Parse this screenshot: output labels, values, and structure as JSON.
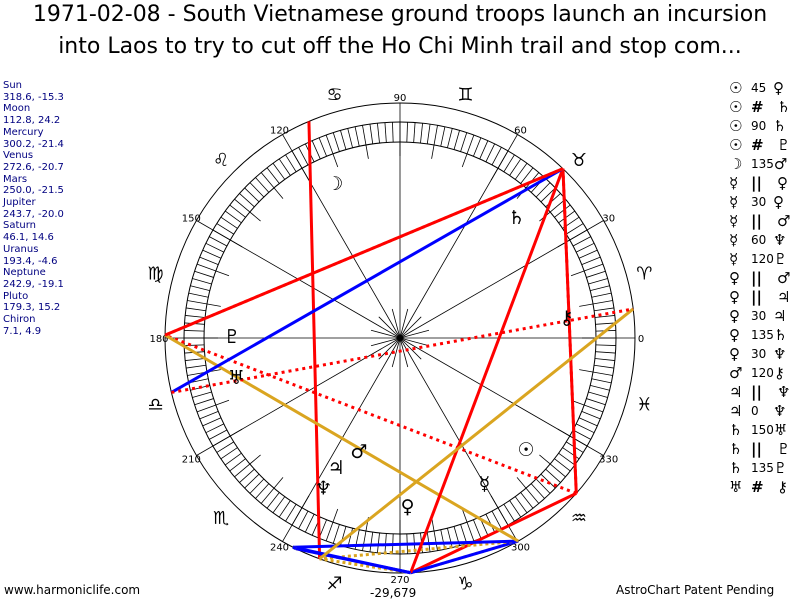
{
  "title": {
    "line1": "1971-02-08 - South Vietnamese ground troops launch an incursion",
    "line2": "into Laos to try to cut off the Ho Chi Minh trail and stop com..."
  },
  "planets": [
    {
      "name": "Sun",
      "coords": "318.6, -15.3",
      "lon": 318.6,
      "glyph": "☉"
    },
    {
      "name": "Moon",
      "coords": "112.8, 24.2",
      "lon": 112.8,
      "glyph": "☽"
    },
    {
      "name": "Mercury",
      "coords": "300.2, -21.4",
      "lon": 300.2,
      "glyph": "☿"
    },
    {
      "name": "Venus",
      "coords": "272.6, -20.7",
      "lon": 272.6,
      "glyph": "♀"
    },
    {
      "name": "Mars",
      "coords": "250.0, -21.5",
      "lon": 250.0,
      "glyph": "♂"
    },
    {
      "name": "Jupiter",
      "coords": "243.7, -20.0",
      "lon": 243.7,
      "glyph": "♃"
    },
    {
      "name": "Saturn",
      "coords": "46.1, 14.6",
      "lon": 46.1,
      "glyph": "♄"
    },
    {
      "name": "Uranus",
      "coords": "193.4, -4.6",
      "lon": 193.4,
      "glyph": "♅"
    },
    {
      "name": "Neptune",
      "coords": "242.9, -19.1",
      "lon": 242.9,
      "glyph": "♆"
    },
    {
      "name": "Pluto",
      "coords": "179.3, 15.2",
      "lon": 179.3,
      "glyph": "♇"
    },
    {
      "name": "Chiron",
      "coords": "7.1, 4.9",
      "lon": 7.1,
      "glyph": "⚷"
    }
  ],
  "aspects": [
    {
      "p1": "Sun",
      "g1": "☉",
      "aspect": "45",
      "p2": "Venus",
      "g2": "♀"
    },
    {
      "p1": "Sun",
      "g1": "☉",
      "aspect": "#",
      "p2": "Saturn",
      "g2": "♄"
    },
    {
      "p1": "Sun",
      "g1": "☉",
      "aspect": "90",
      "p2": "Saturn",
      "g2": "♄"
    },
    {
      "p1": "Sun",
      "g1": "☉",
      "aspect": "#",
      "p2": "Pluto",
      "g2": "♇"
    },
    {
      "p1": "Moon",
      "g1": "☽",
      "aspect": "135",
      "p2": "Mars",
      "g2": "♂"
    },
    {
      "p1": "Mercury",
      "g1": "☿",
      "aspect": "||",
      "p2": "Venus",
      "g2": "♀"
    },
    {
      "p1": "Mercury",
      "g1": "☿",
      "aspect": "30",
      "p2": "Venus",
      "g2": "♀"
    },
    {
      "p1": "Mercury",
      "g1": "☿",
      "aspect": "||",
      "p2": "Mars",
      "g2": "♂"
    },
    {
      "p1": "Mercury",
      "g1": "☿",
      "aspect": "60",
      "p2": "Neptune",
      "g2": "♆"
    },
    {
      "p1": "Mercury",
      "g1": "☿",
      "aspect": "120",
      "p2": "Pluto",
      "g2": "♇"
    },
    {
      "p1": "Venus",
      "g1": "♀",
      "aspect": "||",
      "p2": "Mars",
      "g2": "♂"
    },
    {
      "p1": "Venus",
      "g1": "♀",
      "aspect": "||",
      "p2": "Jupiter",
      "g2": "♃"
    },
    {
      "p1": "Venus",
      "g1": "♀",
      "aspect": "30",
      "p2": "Jupiter",
      "g2": "♃"
    },
    {
      "p1": "Venus",
      "g1": "♀",
      "aspect": "135",
      "p2": "Saturn",
      "g2": "♄"
    },
    {
      "p1": "Venus",
      "g1": "♀",
      "aspect": "30",
      "p2": "Neptune",
      "g2": "♆"
    },
    {
      "p1": "Mars",
      "g1": "♂",
      "aspect": "120",
      "p2": "Chiron",
      "g2": "⚷"
    },
    {
      "p1": "Jupiter",
      "g1": "♃",
      "aspect": "||",
      "p2": "Neptune",
      "g2": "♆"
    },
    {
      "p1": "Jupiter",
      "g1": "♃",
      "aspect": "0",
      "p2": "Neptune",
      "g2": "♆"
    },
    {
      "p1": "Saturn",
      "g1": "♄",
      "aspect": "150",
      "p2": "Uranus",
      "g2": "♅"
    },
    {
      "p1": "Saturn",
      "g1": "♄",
      "aspect": "||",
      "p2": "Pluto",
      "g2": "♇"
    },
    {
      "p1": "Saturn",
      "g1": "♄",
      "aspect": "135",
      "p2": "Pluto",
      "g2": "♇"
    },
    {
      "p1": "Uranus",
      "g1": "♅",
      "aspect": "#",
      "p2": "Chiron",
      "g2": "⚷"
    }
  ],
  "aspect_colors": {
    "red": "#ff0000",
    "blue": "#0000ff",
    "orange": "#daa520"
  },
  "degree_labels": [
    "0",
    "30",
    "60",
    "90",
    "120",
    "150",
    "180",
    "210",
    "240",
    "270",
    "300",
    "330"
  ],
  "zodiac": [
    "♈",
    "♉",
    "♊",
    "♋",
    "♌",
    "♍",
    "♎",
    "♏",
    "♐",
    "♑",
    "♒",
    "♓"
  ],
  "bottom_value": "-29,679",
  "footer": {
    "left": "www.harmoniclife.com",
    "right": "AstroChart Patent Pending"
  }
}
